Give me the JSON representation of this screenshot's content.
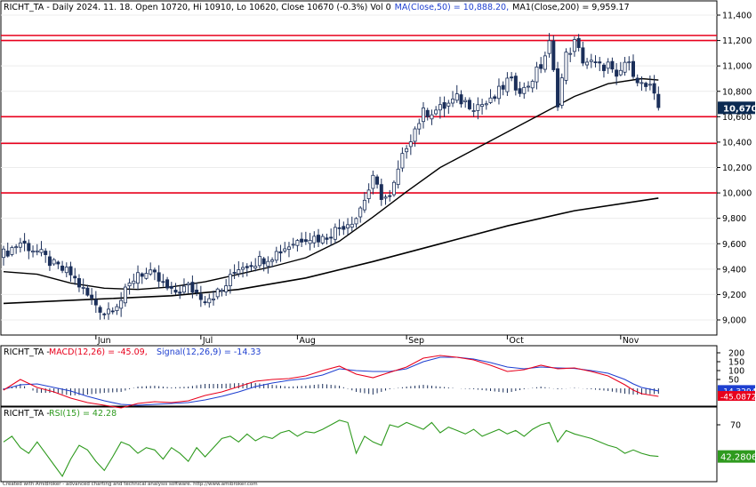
{
  "header": {
    "symbol": "RICHT_TA",
    "info": "RICHT_TA - Daily 2024. 11. 18. Open 10720, Hi 10910, Lo 10620, Close 10670 (-0.3%) Vol 0",
    "ma50_label": "MA(Close,50) = 10,888.20,",
    "ma200_label": "MA1(Close,200) = 9,959.17"
  },
  "macd_header": {
    "prefix": "RICHT_TA - ",
    "macd_label": "MACD(12,26) = -45.09,",
    "signal_label": "Signal(12,26,9) = -14.33"
  },
  "rsi_header": {
    "prefix": "RICHT_TA - ",
    "rsi_label": "RSI(15) = 42.28"
  },
  "footer": "Created with AmiBroker - advanced charting and technical analysis software. http://www.amibroker.com",
  "colors": {
    "level_line": "#e8001c",
    "macd": "#e8001c",
    "signal": "#1e3fd0",
    "rsi": "#2e9a1e",
    "candle": "#1b2f5a",
    "price_tag": "#0b2a52",
    "macd_tag": "#1e3fd0",
    "signal_tag": "#e8001c",
    "rsi_tag": "#2e9a1e"
  },
  "chart_data": [
    {
      "type": "candlestick",
      "x_tick_labels": [
        "Jun",
        "Jul",
        "Aug",
        "Sep",
        "Oct",
        "Nov"
      ],
      "y_ticks": [
        "9,000",
        "9,200",
        "9,400",
        "9,600",
        "9,800",
        "10,000",
        "10,200",
        "10,400",
        "10,600",
        "10,800",
        "11,000",
        "11,200",
        "11,400"
      ],
      "ylim": [
        8920,
        11420
      ],
      "last_close_label": "10,670",
      "last_close": 10670,
      "horizontal_levels": [
        11240,
        11200,
        10600,
        10390,
        10000
      ],
      "close_points": [
        [
          0,
          9520
        ],
        [
          4,
          9610
        ],
        [
          8,
          9540
        ],
        [
          12,
          9430
        ],
        [
          16,
          9360
        ],
        [
          20,
          9190
        ],
        [
          24,
          9060
        ],
        [
          28,
          9160
        ],
        [
          32,
          9380
        ],
        [
          36,
          9340
        ],
        [
          40,
          9210
        ],
        [
          44,
          9260
        ],
        [
          48,
          9170
        ],
        [
          52,
          9230
        ],
        [
          56,
          9420
        ],
        [
          60,
          9460
        ],
        [
          64,
          9510
        ],
        [
          68,
          9590
        ],
        [
          72,
          9660
        ],
        [
          76,
          9640
        ],
        [
          80,
          9730
        ],
        [
          84,
          9810
        ],
        [
          88,
          10100
        ],
        [
          90,
          9980
        ],
        [
          92,
          9950
        ],
        [
          96,
          10380
        ],
        [
          100,
          10630
        ],
        [
          104,
          10660
        ],
        [
          108,
          10740
        ],
        [
          112,
          10690
        ],
        [
          116,
          10710
        ],
        [
          120,
          10880
        ],
        [
          124,
          10810
        ],
        [
          128,
          11000
        ],
        [
          130,
          11170
        ],
        [
          132,
          10720
        ],
        [
          134,
          11080
        ],
        [
          136,
          11180
        ],
        [
          138,
          11050
        ],
        [
          142,
          10990
        ],
        [
          144,
          11010
        ],
        [
          146,
          10880
        ],
        [
          148,
          11030
        ],
        [
          150,
          10960
        ],
        [
          152,
          10850
        ],
        [
          154,
          10820
        ],
        [
          156,
          10670
        ]
      ],
      "ma50_points": [
        [
          0,
          9380
        ],
        [
          8,
          9360
        ],
        [
          16,
          9290
        ],
        [
          24,
          9250
        ],
        [
          32,
          9240
        ],
        [
          40,
          9260
        ],
        [
          48,
          9300
        ],
        [
          56,
          9360
        ],
        [
          64,
          9420
        ],
        [
          72,
          9490
        ],
        [
          80,
          9620
        ],
        [
          88,
          9810
        ],
        [
          96,
          10010
        ],
        [
          104,
          10200
        ],
        [
          112,
          10340
        ],
        [
          120,
          10480
        ],
        [
          128,
          10620
        ],
        [
          136,
          10760
        ],
        [
          144,
          10860
        ],
        [
          152,
          10900
        ],
        [
          156,
          10888.2
        ]
      ],
      "ma200_points": [
        [
          0,
          9130
        ],
        [
          20,
          9160
        ],
        [
          40,
          9190
        ],
        [
          56,
          9240
        ],
        [
          72,
          9330
        ],
        [
          88,
          9460
        ],
        [
          104,
          9600
        ],
        [
          120,
          9740
        ],
        [
          136,
          9860
        ],
        [
          156,
          9959.17
        ]
      ]
    },
    {
      "type": "line",
      "name": "MACD",
      "y_ticks": [
        "50",
        "100",
        "150",
        "200"
      ],
      "ylim": [
        -110,
        230
      ],
      "macd_value_label": "-45.0872",
      "signal_value_label": "-14.3294",
      "macd_points": [
        [
          0,
          -10
        ],
        [
          4,
          50
        ],
        [
          8,
          5
        ],
        [
          12,
          -20
        ],
        [
          16,
          -55
        ],
        [
          20,
          -80
        ],
        [
          24,
          -95
        ],
        [
          28,
          -110
        ],
        [
          32,
          -85
        ],
        [
          36,
          -75
        ],
        [
          40,
          -80
        ],
        [
          44,
          -70
        ],
        [
          48,
          -40
        ],
        [
          52,
          -20
        ],
        [
          56,
          10
        ],
        [
          60,
          40
        ],
        [
          64,
          50
        ],
        [
          68,
          55
        ],
        [
          72,
          70
        ],
        [
          76,
          100
        ],
        [
          80,
          125
        ],
        [
          84,
          80
        ],
        [
          88,
          60
        ],
        [
          92,
          90
        ],
        [
          96,
          120
        ],
        [
          100,
          170
        ],
        [
          104,
          185
        ],
        [
          108,
          175
        ],
        [
          112,
          160
        ],
        [
          116,
          130
        ],
        [
          120,
          95
        ],
        [
          124,
          105
        ],
        [
          128,
          130
        ],
        [
          132,
          110
        ],
        [
          136,
          115
        ],
        [
          140,
          95
        ],
        [
          144,
          70
        ],
        [
          148,
          20
        ],
        [
          150,
          -10
        ],
        [
          152,
          -30
        ],
        [
          156,
          -45.09
        ]
      ],
      "signal_points": [
        [
          0,
          -5
        ],
        [
          4,
          20
        ],
        [
          8,
          25
        ],
        [
          12,
          5
        ],
        [
          16,
          -15
        ],
        [
          20,
          -45
        ],
        [
          24,
          -70
        ],
        [
          28,
          -90
        ],
        [
          32,
          -95
        ],
        [
          36,
          -90
        ],
        [
          40,
          -85
        ],
        [
          44,
          -80
        ],
        [
          48,
          -65
        ],
        [
          52,
          -45
        ],
        [
          56,
          -20
        ],
        [
          60,
          10
        ],
        [
          64,
          30
        ],
        [
          68,
          45
        ],
        [
          72,
          55
        ],
        [
          76,
          75
        ],
        [
          80,
          110
        ],
        [
          84,
          100
        ],
        [
          88,
          95
        ],
        [
          92,
          95
        ],
        [
          96,
          110
        ],
        [
          100,
          150
        ],
        [
          104,
          175
        ],
        [
          108,
          175
        ],
        [
          112,
          165
        ],
        [
          116,
          145
        ],
        [
          120,
          120
        ],
        [
          124,
          110
        ],
        [
          128,
          120
        ],
        [
          132,
          115
        ],
        [
          136,
          112
        ],
        [
          140,
          100
        ],
        [
          144,
          85
        ],
        [
          148,
          50
        ],
        [
          150,
          25
        ],
        [
          152,
          5
        ],
        [
          156,
          -14.33
        ]
      ],
      "hist_values": [
        [
          0,
          -10
        ],
        [
          4,
          25
        ],
        [
          8,
          -25
        ],
        [
          12,
          -25
        ],
        [
          16,
          -40
        ],
        [
          20,
          -35
        ],
        [
          24,
          -25
        ],
        [
          28,
          -20
        ],
        [
          32,
          10
        ],
        [
          36,
          15
        ],
        [
          40,
          5
        ],
        [
          44,
          10
        ],
        [
          48,
          25
        ],
        [
          52,
          25
        ],
        [
          56,
          30
        ],
        [
          60,
          30
        ],
        [
          64,
          20
        ],
        [
          68,
          10
        ],
        [
          72,
          15
        ],
        [
          76,
          25
        ],
        [
          80,
          15
        ],
        [
          84,
          -20
        ],
        [
          88,
          -35
        ],
        [
          92,
          -5
        ],
        [
          96,
          10
        ],
        [
          100,
          20
        ],
        [
          104,
          10
        ],
        [
          108,
          0
        ],
        [
          112,
          -5
        ],
        [
          116,
          -15
        ],
        [
          120,
          -25
        ],
        [
          124,
          -5
        ],
        [
          128,
          10
        ],
        [
          132,
          -5
        ],
        [
          136,
          3
        ],
        [
          140,
          -5
        ],
        [
          144,
          -15
        ],
        [
          148,
          -30
        ],
        [
          150,
          -35
        ],
        [
          152,
          -35
        ],
        [
          156,
          -30.76
        ]
      ]
    },
    {
      "type": "line",
      "name": "RSI(15)",
      "y_ticks": [
        "70"
      ],
      "ylim": [
        20,
        82
      ],
      "rsi_value_label": "42.2806",
      "rsi_points": [
        [
          0,
          55
        ],
        [
          2,
          60
        ],
        [
          4,
          50
        ],
        [
          6,
          45
        ],
        [
          8,
          55
        ],
        [
          10,
          45
        ],
        [
          12,
          35
        ],
        [
          14,
          25
        ],
        [
          16,
          40
        ],
        [
          18,
          52
        ],
        [
          20,
          48
        ],
        [
          22,
          38
        ],
        [
          24,
          30
        ],
        [
          26,
          42
        ],
        [
          28,
          55
        ],
        [
          30,
          52
        ],
        [
          32,
          45
        ],
        [
          34,
          50
        ],
        [
          36,
          48
        ],
        [
          38,
          40
        ],
        [
          40,
          50
        ],
        [
          42,
          45
        ],
        [
          44,
          38
        ],
        [
          46,
          50
        ],
        [
          48,
          42
        ],
        [
          50,
          50
        ],
        [
          52,
          58
        ],
        [
          54,
          60
        ],
        [
          56,
          55
        ],
        [
          58,
          62
        ],
        [
          60,
          56
        ],
        [
          62,
          60
        ],
        [
          64,
          58
        ],
        [
          66,
          63
        ],
        [
          68,
          65
        ],
        [
          70,
          60
        ],
        [
          72,
          64
        ],
        [
          74,
          63
        ],
        [
          76,
          66
        ],
        [
          78,
          70
        ],
        [
          80,
          74
        ],
        [
          82,
          72
        ],
        [
          84,
          45
        ],
        [
          86,
          60
        ],
        [
          88,
          55
        ],
        [
          90,
          52
        ],
        [
          92,
          70
        ],
        [
          94,
          68
        ],
        [
          96,
          72
        ],
        [
          98,
          69
        ],
        [
          100,
          66
        ],
        [
          102,
          72
        ],
        [
          104,
          63
        ],
        [
          106,
          68
        ],
        [
          108,
          65
        ],
        [
          110,
          62
        ],
        [
          112,
          66
        ],
        [
          114,
          60
        ],
        [
          116,
          63
        ],
        [
          118,
          66
        ],
        [
          120,
          62
        ],
        [
          122,
          65
        ],
        [
          124,
          60
        ],
        [
          126,
          66
        ],
        [
          128,
          70
        ],
        [
          130,
          72
        ],
        [
          132,
          55
        ],
        [
          134,
          65
        ],
        [
          136,
          62
        ],
        [
          138,
          60
        ],
        [
          140,
          58
        ],
        [
          142,
          55
        ],
        [
          144,
          52
        ],
        [
          146,
          50
        ],
        [
          148,
          45
        ],
        [
          150,
          48
        ],
        [
          152,
          45
        ],
        [
          154,
          43
        ],
        [
          156,
          42.28
        ]
      ]
    }
  ]
}
